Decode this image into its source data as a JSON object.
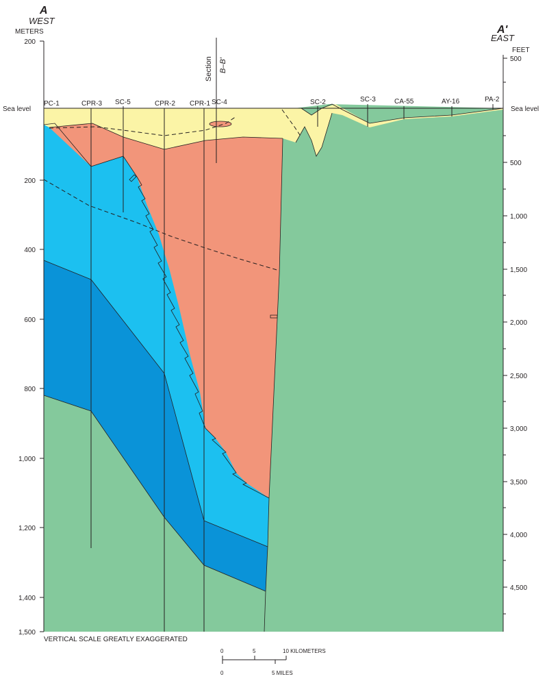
{
  "section": {
    "west_letter": "A",
    "west_word": "WEST",
    "east_letter": "A'",
    "east_word": "EAST",
    "crossing_section_label": "Section",
    "crossing_section_name": "B–B'"
  },
  "left_axis": {
    "unit": "METERS",
    "sea_level": "Sea level",
    "ticks": [
      "200",
      "200",
      "400",
      "600",
      "800",
      "1,000",
      "1,200",
      "1,400",
      "1,500"
    ]
  },
  "right_axis": {
    "unit": "FEET",
    "sea_level": "Sea level",
    "ticks": [
      "500",
      "500",
      "1,000",
      "1,500",
      "2,000",
      "2,500",
      "3,000",
      "3,500",
      "4,000",
      "4,500"
    ]
  },
  "wells": [
    "PC-1",
    "CPR-3",
    "SC-5",
    "CPR-2",
    "CPR-1",
    "SC-4",
    "SC-2",
    "SC-3",
    "CA-55",
    "AY-16",
    "PA-2"
  ],
  "notes": {
    "vertical_scale": "VERTICAL SCALE GREATLY EXAGGERATED"
  },
  "scale_bar": {
    "km_labels": [
      "0",
      "5",
      "10 KILOMETERS"
    ],
    "mile_labels": [
      "0",
      "5 MILES"
    ]
  },
  "colors": {
    "surficial_unit": "#fbf4a6",
    "upper_blue_unit": "#1cc0f0",
    "lower_blue_unit": "#0a93d8",
    "orange_unit": "#f2957a",
    "basement": "#84c99c"
  }
}
